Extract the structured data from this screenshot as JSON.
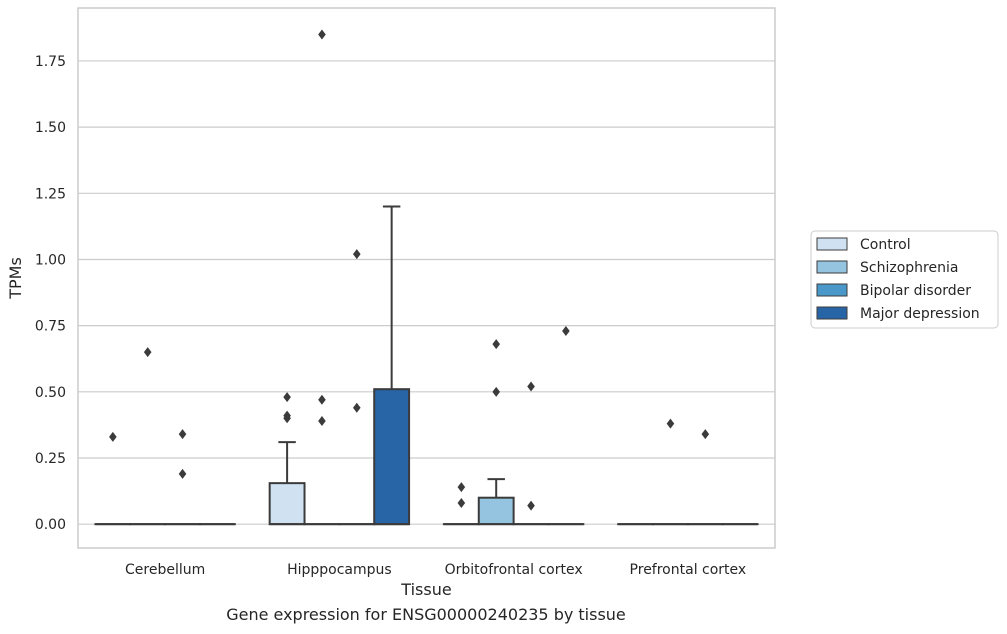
{
  "caption": "Gene expression for ENSG00000240235 by tissue",
  "chart_data": {
    "type": "boxplot",
    "xlabel": "Tissue",
    "ylabel": "TPMs",
    "ylim": [
      -0.09,
      1.95
    ],
    "yticks": [
      0.0,
      0.25,
      0.5,
      0.75,
      1.0,
      1.25,
      1.5,
      1.75
    ],
    "ytick_labels": [
      "0.00",
      "0.25",
      "0.50",
      "0.75",
      "1.00",
      "1.25",
      "1.50",
      "1.75"
    ],
    "grid": true,
    "legend_position": "right",
    "categories": [
      "Cerebellum",
      "Hipppocampus",
      "Orbitofrontal cortex",
      "Prefrontal cortex"
    ],
    "series": [
      {
        "name": "Control",
        "color": "#d0e1f2",
        "boxes": [
          {
            "q1": 0,
            "median": 0,
            "q3": 0,
            "whisker_low": 0,
            "whisker_high": 0,
            "outliers": [
              0.33
            ]
          },
          {
            "q1": 0,
            "median": 0,
            "q3": 0.155,
            "whisker_low": 0,
            "whisker_high": 0.31,
            "outliers": [
              0.48,
              0.41,
              0.4
            ]
          },
          {
            "q1": 0,
            "median": 0,
            "q3": 0,
            "whisker_low": 0,
            "whisker_high": 0,
            "outliers": [
              0.14,
              0.08
            ]
          },
          {
            "q1": 0,
            "median": 0,
            "q3": 0,
            "whisker_low": 0,
            "whisker_high": 0,
            "outliers": []
          }
        ]
      },
      {
        "name": "Schizophrenia",
        "color": "#94c4df",
        "boxes": [
          {
            "q1": 0,
            "median": 0,
            "q3": 0,
            "whisker_low": 0,
            "whisker_high": 0,
            "outliers": [
              0.65
            ]
          },
          {
            "q1": 0,
            "median": 0,
            "q3": 0,
            "whisker_low": 0,
            "whisker_high": 0,
            "outliers": [
              1.85,
              0.47,
              0.39
            ]
          },
          {
            "q1": 0,
            "median": 0,
            "q3": 0.1,
            "whisker_low": 0,
            "whisker_high": 0.17,
            "outliers": [
              0.68,
              0.5
            ]
          },
          {
            "q1": 0,
            "median": 0,
            "q3": 0,
            "whisker_low": 0,
            "whisker_high": 0,
            "outliers": [
              0.38
            ]
          }
        ]
      },
      {
        "name": "Bipolar disorder",
        "color": "#4a98c9",
        "boxes": [
          {
            "q1": 0,
            "median": 0,
            "q3": 0,
            "whisker_low": 0,
            "whisker_high": 0,
            "outliers": [
              0.34,
              0.19
            ]
          },
          {
            "q1": 0,
            "median": 0,
            "q3": 0,
            "whisker_low": 0,
            "whisker_high": 0,
            "outliers": [
              1.02,
              0.44
            ]
          },
          {
            "q1": 0,
            "median": 0,
            "q3": 0,
            "whisker_low": 0,
            "whisker_high": 0,
            "outliers": [
              0.52,
              0.07
            ]
          },
          {
            "q1": 0,
            "median": 0,
            "q3": 0,
            "whisker_low": 0,
            "whisker_high": 0,
            "outliers": [
              0.34
            ]
          }
        ]
      },
      {
        "name": "Major depression",
        "color": "#2865a6",
        "boxes": [
          {
            "q1": 0,
            "median": 0,
            "q3": 0,
            "whisker_low": 0,
            "whisker_high": 0,
            "outliers": []
          },
          {
            "q1": 0,
            "median": 0,
            "q3": 0.51,
            "whisker_low": 0,
            "whisker_high": 1.2,
            "outliers": []
          },
          {
            "q1": 0,
            "median": 0,
            "q3": 0,
            "whisker_low": 0,
            "whisker_high": 0,
            "outliers": [
              0.73
            ]
          },
          {
            "q1": 0,
            "median": 0,
            "q3": 0,
            "whisker_low": 0,
            "whisker_high": 0,
            "outliers": []
          }
        ]
      }
    ]
  }
}
